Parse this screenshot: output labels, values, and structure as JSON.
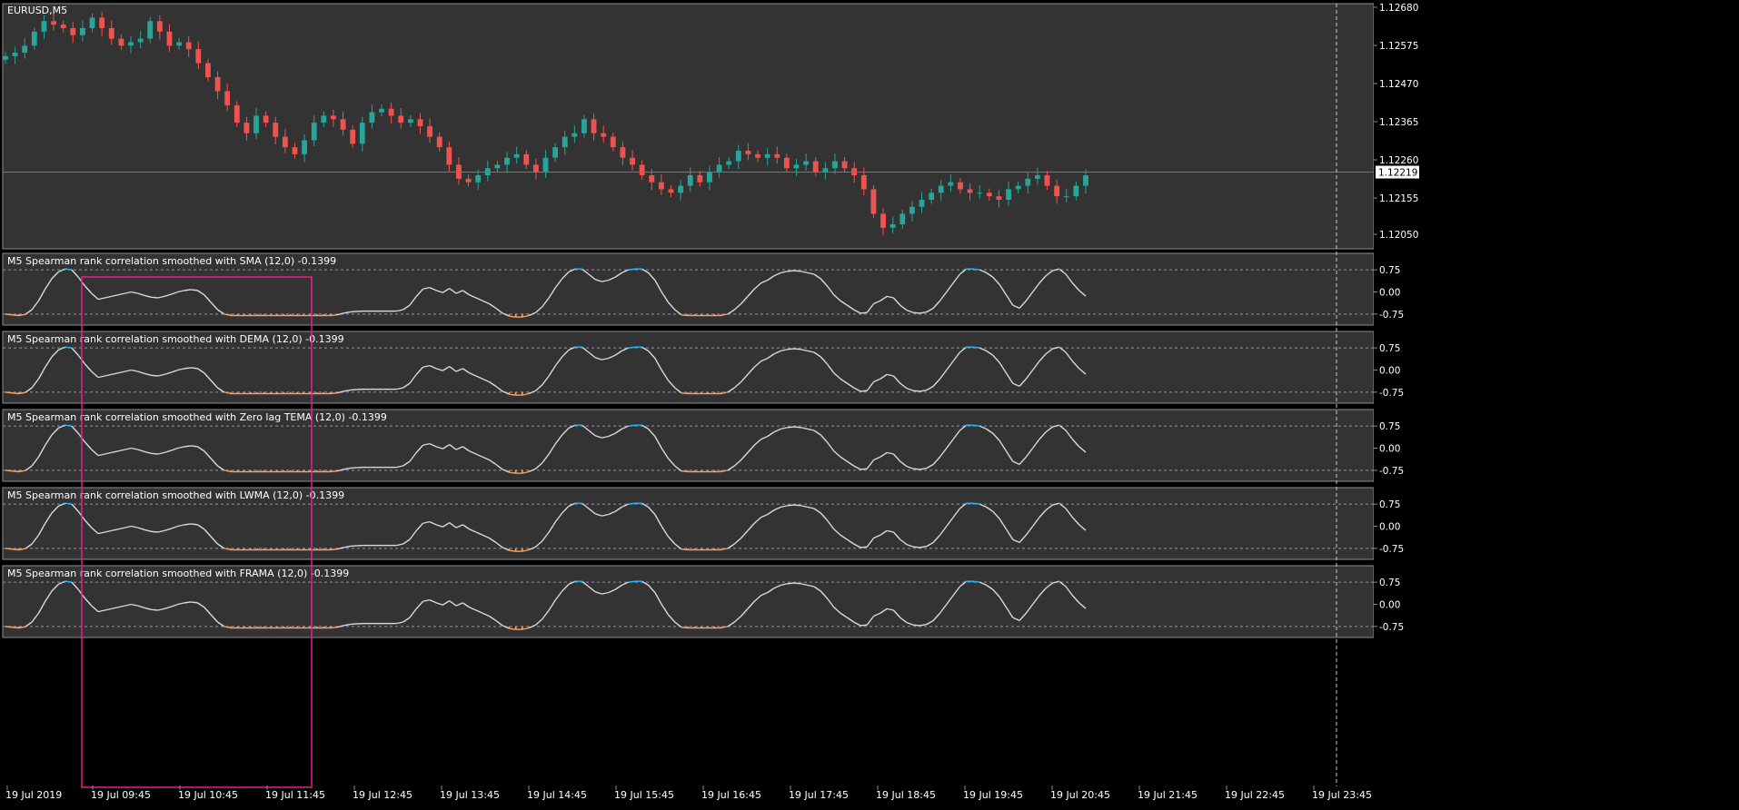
{
  "colors": {
    "background": "#000000",
    "panel": "#333333",
    "border": "#8c8c8c",
    "text": "#ffffff",
    "bull": "#26a69a",
    "bear": "#ef5350",
    "line": "#d9d9d9",
    "overbought": "#29b6f6",
    "oversold": "#f4a460",
    "level": "#b07bd8",
    "highlight": "#e91e8c",
    "crosshair": "#c8c8c8"
  },
  "chart_data": [
    {
      "type": "candlestick",
      "title": "EURUSD,M5",
      "y_ticks": [
        "1.12680",
        "1.12575",
        "1.12470",
        "1.12365",
        "1.12260",
        "1.12155",
        "1.12050"
      ],
      "ylim": [
        1.12,
        1.127
      ],
      "current_price": "1.12219",
      "grid": false,
      "close_series": [
        1.1255,
        1.1256,
        1.1258,
        1.1262,
        1.1265,
        1.1264,
        1.1263,
        1.1261,
        1.1263,
        1.1266,
        1.1263,
        1.126,
        1.1258,
        1.1259,
        1.126,
        1.1265,
        1.1262,
        1.1258,
        1.1259,
        1.1257,
        1.1253,
        1.1249,
        1.1245,
        1.1241,
        1.1236,
        1.1233,
        1.1238,
        1.1236,
        1.1232,
        1.1229,
        1.1227,
        1.1231,
        1.1236,
        1.1238,
        1.1237,
        1.1234,
        1.123,
        1.1236,
        1.1239,
        1.124,
        1.1238,
        1.1236,
        1.1237,
        1.1235,
        1.1232,
        1.1229,
        1.1224,
        1.122,
        1.1219,
        1.1221,
        1.1223,
        1.1224,
        1.1226,
        1.1227,
        1.1224,
        1.1222,
        1.1226,
        1.1229,
        1.1232,
        1.1233,
        1.1237,
        1.1233,
        1.1232,
        1.1229,
        1.1226,
        1.1224,
        1.1221,
        1.1219,
        1.1217,
        1.1216,
        1.1218,
        1.1221,
        1.1219,
        1.1222,
        1.1224,
        1.1225,
        1.1228,
        1.1227,
        1.1226,
        1.1227,
        1.1226,
        1.1223,
        1.1224,
        1.1225,
        1.1222,
        1.1223,
        1.1225,
        1.1223,
        1.1221,
        1.1217,
        1.121,
        1.1206,
        1.1207,
        1.121,
        1.1212,
        1.1214,
        1.1216,
        1.1218,
        1.1219,
        1.1217,
        1.1216,
        1.1216,
        1.1215,
        1.1214,
        1.1217,
        1.1218,
        1.122,
        1.1221,
        1.1218,
        1.1215,
        1.1215,
        1.1218,
        1.1221
      ],
      "vertical_line_label": "19 Jul 23:45"
    },
    {
      "type": "line",
      "title": "M5 Spearman rank correlation smoothed with SMA (12,0) -0.1399",
      "y_ticks": [
        "0.75",
        "0.00",
        "-0.75"
      ],
      "levels": [
        0.75,
        -0.75
      ],
      "ylim": [
        -1,
        1
      ],
      "last_value": -0.1399,
      "grid": false,
      "values": [
        -0.75,
        -0.78,
        -0.8,
        -0.76,
        -0.6,
        -0.3,
        0.1,
        0.45,
        0.68,
        0.78,
        0.75,
        0.5,
        0.2,
        -0.05,
        -0.25,
        -0.2,
        -0.15,
        -0.1,
        -0.05,
        0.0,
        -0.05,
        -0.12,
        -0.18,
        -0.2,
        -0.15,
        -0.08,
        0.0,
        0.05,
        0.08,
        0.05,
        -0.1,
        -0.35,
        -0.6,
        -0.75,
        -0.8,
        -0.8,
        -0.8,
        -0.8,
        -0.8,
        -0.8,
        -0.8,
        -0.8,
        -0.8,
        -0.8,
        -0.8,
        -0.8,
        -0.8,
        -0.8,
        -0.8,
        -0.8,
        -0.78,
        -0.72,
        -0.68,
        -0.66,
        -0.65,
        -0.65,
        -0.65,
        -0.65,
        -0.65,
        -0.65,
        -0.6,
        -0.45,
        -0.15,
        0.1,
        0.15,
        0.05,
        -0.02,
        0.12,
        -0.05,
        0.05,
        -0.1,
        -0.2,
        -0.3,
        -0.4,
        -0.55,
        -0.72,
        -0.82,
        -0.85,
        -0.85,
        -0.8,
        -0.7,
        -0.5,
        -0.2,
        0.15,
        0.45,
        0.68,
        0.78,
        0.78,
        0.6,
        0.42,
        0.35,
        0.4,
        0.5,
        0.65,
        0.75,
        0.78,
        0.78,
        0.65,
        0.4,
        0.0,
        -0.35,
        -0.6,
        -0.78,
        -0.8,
        -0.8,
        -0.8,
        -0.8,
        -0.8,
        -0.8,
        -0.75,
        -0.6,
        -0.4,
        -0.15,
        0.1,
        0.3,
        0.4,
        0.55,
        0.65,
        0.7,
        0.72,
        0.7,
        0.65,
        0.6,
        0.45,
        0.2,
        -0.1,
        -0.3,
        -0.45,
        -0.6,
        -0.72,
        -0.7,
        -0.4,
        -0.3,
        -0.15,
        -0.2,
        -0.45,
        -0.62,
        -0.7,
        -0.72,
        -0.68,
        -0.55,
        -0.3,
        0.0,
        0.3,
        0.6,
        0.78,
        0.78,
        0.75,
        0.65,
        0.5,
        0.25,
        -0.1,
        -0.45,
        -0.55,
        -0.3,
        0.0,
        0.3,
        0.55,
        0.72,
        0.78,
        0.6,
        0.3,
        0.05,
        -0.14
      ]
    },
    {
      "type": "line",
      "title": "M5 Spearman rank correlation smoothed with DEMA (12,0) -0.1399",
      "y_ticks": [
        "0.75",
        "0.00",
        "-0.75"
      ],
      "levels": [
        0.75,
        -0.75
      ],
      "ylim": [
        -1,
        1
      ],
      "last_value": -0.1399,
      "grid": false,
      "values": [
        -0.75,
        -0.78,
        -0.8,
        -0.76,
        -0.6,
        -0.3,
        0.1,
        0.45,
        0.68,
        0.78,
        0.75,
        0.5,
        0.2,
        -0.05,
        -0.25,
        -0.2,
        -0.15,
        -0.1,
        -0.05,
        0.0,
        -0.05,
        -0.12,
        -0.18,
        -0.2,
        -0.15,
        -0.08,
        0.0,
        0.05,
        0.08,
        0.05,
        -0.1,
        -0.35,
        -0.6,
        -0.75,
        -0.8,
        -0.8,
        -0.8,
        -0.8,
        -0.8,
        -0.8,
        -0.8,
        -0.8,
        -0.8,
        -0.8,
        -0.8,
        -0.8,
        -0.8,
        -0.8,
        -0.8,
        -0.8,
        -0.78,
        -0.72,
        -0.68,
        -0.66,
        -0.65,
        -0.65,
        -0.65,
        -0.65,
        -0.65,
        -0.65,
        -0.6,
        -0.45,
        -0.15,
        0.1,
        0.15,
        0.05,
        -0.02,
        0.12,
        -0.05,
        0.05,
        -0.1,
        -0.2,
        -0.3,
        -0.4,
        -0.55,
        -0.72,
        -0.82,
        -0.85,
        -0.85,
        -0.8,
        -0.7,
        -0.5,
        -0.2,
        0.15,
        0.45,
        0.68,
        0.78,
        0.78,
        0.6,
        0.42,
        0.35,
        0.4,
        0.5,
        0.65,
        0.75,
        0.78,
        0.78,
        0.65,
        0.4,
        0.0,
        -0.35,
        -0.6,
        -0.78,
        -0.8,
        -0.8,
        -0.8,
        -0.8,
        -0.8,
        -0.8,
        -0.75,
        -0.6,
        -0.4,
        -0.15,
        0.1,
        0.3,
        0.4,
        0.55,
        0.65,
        0.7,
        0.72,
        0.7,
        0.65,
        0.6,
        0.45,
        0.2,
        -0.1,
        -0.3,
        -0.45,
        -0.6,
        -0.72,
        -0.7,
        -0.4,
        -0.3,
        -0.15,
        -0.2,
        -0.45,
        -0.62,
        -0.7,
        -0.72,
        -0.68,
        -0.55,
        -0.3,
        0.0,
        0.3,
        0.6,
        0.78,
        0.78,
        0.75,
        0.65,
        0.5,
        0.25,
        -0.1,
        -0.45,
        -0.55,
        -0.3,
        0.0,
        0.3,
        0.55,
        0.72,
        0.78,
        0.6,
        0.3,
        0.05,
        -0.14
      ]
    },
    {
      "type": "line",
      "title": "M5 Spearman rank correlation smoothed with Zero lag TEMA (12,0) -0.1399",
      "y_ticks": [
        "0.75",
        "0.00",
        "-0.75"
      ],
      "levels": [
        0.75,
        -0.75
      ],
      "ylim": [
        -1,
        1
      ],
      "last_value": -0.1399,
      "grid": false,
      "values": [
        -0.75,
        -0.78,
        -0.8,
        -0.76,
        -0.6,
        -0.3,
        0.1,
        0.45,
        0.68,
        0.78,
        0.75,
        0.5,
        0.2,
        -0.05,
        -0.25,
        -0.2,
        -0.15,
        -0.1,
        -0.05,
        0.0,
        -0.05,
        -0.12,
        -0.18,
        -0.2,
        -0.15,
        -0.08,
        0.0,
        0.05,
        0.08,
        0.05,
        -0.1,
        -0.35,
        -0.6,
        -0.75,
        -0.8,
        -0.8,
        -0.8,
        -0.8,
        -0.8,
        -0.8,
        -0.8,
        -0.8,
        -0.8,
        -0.8,
        -0.8,
        -0.8,
        -0.8,
        -0.8,
        -0.8,
        -0.8,
        -0.78,
        -0.72,
        -0.68,
        -0.66,
        -0.65,
        -0.65,
        -0.65,
        -0.65,
        -0.65,
        -0.65,
        -0.6,
        -0.45,
        -0.15,
        0.1,
        0.15,
        0.05,
        -0.02,
        0.12,
        -0.05,
        0.05,
        -0.1,
        -0.2,
        -0.3,
        -0.4,
        -0.55,
        -0.72,
        -0.82,
        -0.85,
        -0.85,
        -0.8,
        -0.7,
        -0.5,
        -0.2,
        0.15,
        0.45,
        0.68,
        0.78,
        0.78,
        0.6,
        0.42,
        0.35,
        0.4,
        0.5,
        0.65,
        0.75,
        0.78,
        0.78,
        0.65,
        0.4,
        0.0,
        -0.35,
        -0.6,
        -0.78,
        -0.8,
        -0.8,
        -0.8,
        -0.8,
        -0.8,
        -0.8,
        -0.75,
        -0.6,
        -0.4,
        -0.15,
        0.1,
        0.3,
        0.4,
        0.55,
        0.65,
        0.7,
        0.72,
        0.7,
        0.65,
        0.6,
        0.45,
        0.2,
        -0.1,
        -0.3,
        -0.45,
        -0.6,
        -0.72,
        -0.7,
        -0.4,
        -0.3,
        -0.15,
        -0.2,
        -0.45,
        -0.62,
        -0.7,
        -0.72,
        -0.68,
        -0.55,
        -0.3,
        0.0,
        0.3,
        0.6,
        0.78,
        0.78,
        0.75,
        0.65,
        0.5,
        0.25,
        -0.1,
        -0.45,
        -0.55,
        -0.3,
        0.0,
        0.3,
        0.55,
        0.72,
        0.78,
        0.6,
        0.3,
        0.05,
        -0.14
      ]
    },
    {
      "type": "line",
      "title": "M5 Spearman rank correlation smoothed with LWMA (12,0) -0.1399",
      "y_ticks": [
        "0.75",
        "0.00",
        "-0.75"
      ],
      "levels": [
        0.75,
        -0.75
      ],
      "ylim": [
        -1,
        1
      ],
      "last_value": -0.1399,
      "grid": false,
      "values": [
        -0.75,
        -0.78,
        -0.8,
        -0.76,
        -0.6,
        -0.3,
        0.1,
        0.45,
        0.68,
        0.78,
        0.75,
        0.5,
        0.2,
        -0.05,
        -0.25,
        -0.2,
        -0.15,
        -0.1,
        -0.05,
        0.0,
        -0.05,
        -0.12,
        -0.18,
        -0.2,
        -0.15,
        -0.08,
        0.0,
        0.05,
        0.08,
        0.05,
        -0.1,
        -0.35,
        -0.6,
        -0.75,
        -0.8,
        -0.8,
        -0.8,
        -0.8,
        -0.8,
        -0.8,
        -0.8,
        -0.8,
        -0.8,
        -0.8,
        -0.8,
        -0.8,
        -0.8,
        -0.8,
        -0.8,
        -0.8,
        -0.78,
        -0.72,
        -0.68,
        -0.66,
        -0.65,
        -0.65,
        -0.65,
        -0.65,
        -0.65,
        -0.65,
        -0.6,
        -0.45,
        -0.15,
        0.1,
        0.15,
        0.05,
        -0.02,
        0.12,
        -0.05,
        0.05,
        -0.1,
        -0.2,
        -0.3,
        -0.4,
        -0.55,
        -0.72,
        -0.82,
        -0.85,
        -0.85,
        -0.8,
        -0.7,
        -0.5,
        -0.2,
        0.15,
        0.45,
        0.68,
        0.78,
        0.78,
        0.6,
        0.42,
        0.35,
        0.4,
        0.5,
        0.65,
        0.75,
        0.78,
        0.78,
        0.65,
        0.4,
        0.0,
        -0.35,
        -0.6,
        -0.78,
        -0.8,
        -0.8,
        -0.8,
        -0.8,
        -0.8,
        -0.8,
        -0.75,
        -0.6,
        -0.4,
        -0.15,
        0.1,
        0.3,
        0.4,
        0.55,
        0.65,
        0.7,
        0.72,
        0.7,
        0.65,
        0.6,
        0.45,
        0.2,
        -0.1,
        -0.3,
        -0.45,
        -0.6,
        -0.72,
        -0.7,
        -0.4,
        -0.3,
        -0.15,
        -0.2,
        -0.45,
        -0.62,
        -0.7,
        -0.72,
        -0.68,
        -0.55,
        -0.3,
        0.0,
        0.3,
        0.6,
        0.78,
        0.78,
        0.75,
        0.65,
        0.5,
        0.25,
        -0.1,
        -0.45,
        -0.55,
        -0.3,
        0.0,
        0.3,
        0.55,
        0.72,
        0.78,
        0.6,
        0.3,
        0.05,
        -0.14
      ]
    },
    {
      "type": "line",
      "title": "M5 Spearman rank correlation smoothed with FRAMA (12,0) -0.1399",
      "y_ticks": [
        "0.75",
        "0.00",
        "-0.75"
      ],
      "levels": [
        0.75,
        -0.75
      ],
      "ylim": [
        -1,
        1
      ],
      "last_value": -0.1399,
      "grid": false,
      "values": [
        -0.75,
        -0.78,
        -0.8,
        -0.76,
        -0.6,
        -0.3,
        0.1,
        0.45,
        0.68,
        0.78,
        0.75,
        0.5,
        0.2,
        -0.05,
        -0.25,
        -0.2,
        -0.15,
        -0.1,
        -0.05,
        0.0,
        -0.05,
        -0.12,
        -0.18,
        -0.2,
        -0.15,
        -0.08,
        0.0,
        0.05,
        0.08,
        0.05,
        -0.1,
        -0.35,
        -0.6,
        -0.75,
        -0.8,
        -0.8,
        -0.8,
        -0.8,
        -0.8,
        -0.8,
        -0.8,
        -0.8,
        -0.8,
        -0.8,
        -0.8,
        -0.8,
        -0.8,
        -0.8,
        -0.8,
        -0.8,
        -0.78,
        -0.72,
        -0.68,
        -0.66,
        -0.65,
        -0.65,
        -0.65,
        -0.65,
        -0.65,
        -0.65,
        -0.6,
        -0.45,
        -0.15,
        0.1,
        0.15,
        0.05,
        -0.02,
        0.12,
        -0.05,
        0.05,
        -0.1,
        -0.2,
        -0.3,
        -0.4,
        -0.55,
        -0.72,
        -0.82,
        -0.85,
        -0.85,
        -0.8,
        -0.7,
        -0.5,
        -0.2,
        0.15,
        0.45,
        0.68,
        0.78,
        0.78,
        0.6,
        0.42,
        0.35,
        0.4,
        0.5,
        0.65,
        0.75,
        0.78,
        0.78,
        0.65,
        0.4,
        0.0,
        -0.35,
        -0.6,
        -0.78,
        -0.8,
        -0.8,
        -0.8,
        -0.8,
        -0.8,
        -0.8,
        -0.75,
        -0.6,
        -0.4,
        -0.15,
        0.1,
        0.3,
        0.4,
        0.55,
        0.65,
        0.7,
        0.72,
        0.7,
        0.65,
        0.6,
        0.45,
        0.2,
        -0.1,
        -0.3,
        -0.45,
        -0.6,
        -0.72,
        -0.7,
        -0.4,
        -0.3,
        -0.15,
        -0.2,
        -0.45,
        -0.62,
        -0.7,
        -0.72,
        -0.68,
        -0.55,
        -0.3,
        0.0,
        0.3,
        0.6,
        0.78,
        0.78,
        0.75,
        0.65,
        0.5,
        0.25,
        -0.1,
        -0.45,
        -0.55,
        -0.3,
        0.0,
        0.3,
        0.55,
        0.72,
        0.78,
        0.6,
        0.3,
        0.05,
        -0.14
      ]
    }
  ],
  "x_axis": {
    "labels": [
      "19 Jul 2019",
      "19 Jul 09:45",
      "19 Jul 10:45",
      "19 Jul 11:45",
      "19 Jul 12:45",
      "19 Jul 13:45",
      "19 Jul 14:45",
      "19 Jul 15:45",
      "19 Jul 16:45",
      "19 Jul 17:45",
      "19 Jul 18:45",
      "19 Jul 19:45",
      "19 Jul 20:45",
      "19 Jul 21:45",
      "19 Jul 22:45",
      "19 Jul 23:45"
    ]
  }
}
